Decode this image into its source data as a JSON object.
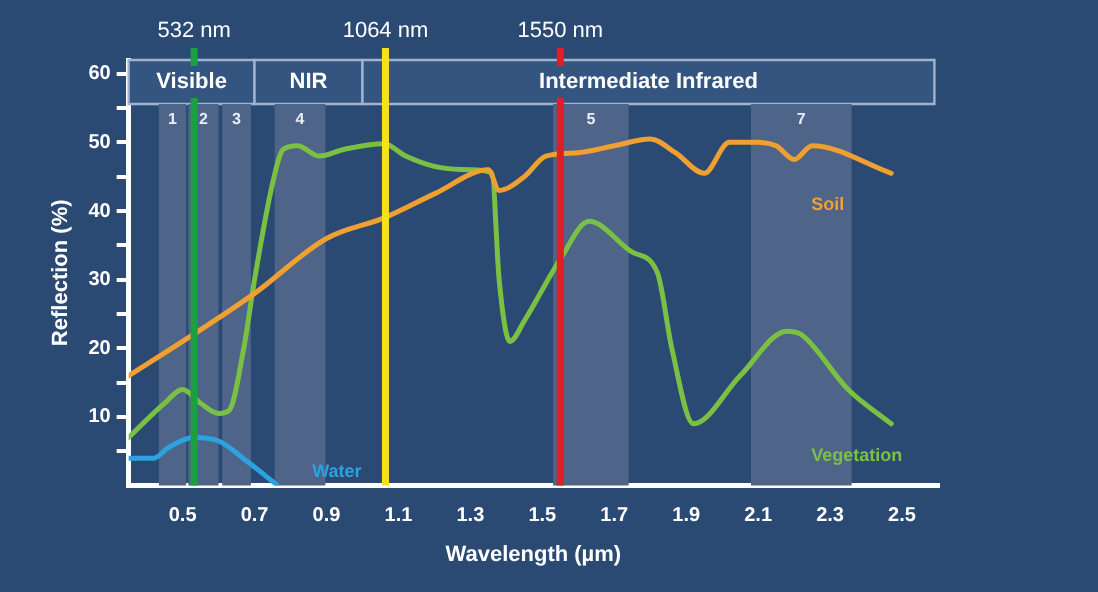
{
  "chart_data": {
    "type": "line",
    "xlabel": "Wavelength (µm)",
    "ylabel": "Reflection (%)",
    "xlim": [
      0.35,
      2.6
    ],
    "ylim": [
      0,
      62
    ],
    "xticks": [
      0.5,
      0.7,
      0.9,
      1.1,
      1.3,
      1.5,
      1.7,
      1.9,
      2.1,
      2.3,
      2.5
    ],
    "yticks": [
      {
        "value": 5,
        "label": null
      },
      10,
      {
        "value": 15,
        "label": null
      },
      20,
      {
        "value": 25,
        "label": null
      },
      30,
      {
        "value": 35,
        "label": null
      },
      40,
      {
        "value": 45,
        "label": null
      },
      50,
      {
        "value": 55,
        "label": null
      },
      60
    ],
    "grid": false,
    "legend": false,
    "marker": "none",
    "line_style": "solid",
    "series": [
      {
        "name": "Soil",
        "color": "#f0a030",
        "x": [
          0.35,
          0.5,
          0.7,
          0.9,
          1.06,
          1.2,
          1.35,
          1.38,
          1.45,
          1.51,
          1.6,
          1.7,
          1.8,
          1.87,
          1.95,
          2.02,
          2.1,
          2.15,
          2.2,
          2.25,
          2.47
        ],
        "values": [
          16,
          21,
          28,
          36,
          39,
          42.5,
          46,
          43,
          45,
          48,
          48.5,
          49.5,
          50.5,
          48.5,
          45.5,
          50,
          50,
          49.5,
          47.5,
          49.5,
          45.5
        ]
      },
      {
        "name": "Vegetation",
        "color": "#7ac143",
        "x": [
          0.35,
          0.45,
          0.5,
          0.55,
          0.6,
          0.63,
          0.67,
          0.7,
          0.75,
          0.78,
          0.82,
          0.88,
          0.95,
          1.06,
          1.12,
          1.2,
          1.3,
          1.36,
          1.38,
          1.41,
          1.45,
          1.55,
          1.63,
          1.75,
          1.82,
          1.86,
          1.92,
          2.05,
          2.18,
          2.22,
          2.35,
          2.47
        ],
        "values": [
          7,
          12,
          14,
          12,
          10.5,
          11,
          20,
          30,
          44,
          49,
          49.5,
          48,
          49,
          49.8,
          48,
          46.5,
          46,
          45.5,
          30,
          21,
          24,
          33,
          38.5,
          34,
          31,
          20,
          9,
          16,
          22.5,
          22,
          14,
          9
        ]
      },
      {
        "name": "Water",
        "color": "#2aa3e0",
        "x": [
          0.35,
          0.42,
          0.46,
          0.53,
          0.6,
          0.68,
          0.76
        ],
        "values": [
          4,
          4,
          5.5,
          7,
          6.5,
          3.5,
          0.2
        ]
      }
    ],
    "ref_lines": [
      {
        "axis": "x",
        "value": 0.532,
        "label": "532 nm",
        "color": "#1aa040"
      },
      {
        "axis": "x",
        "value": 1.064,
        "label": "1064 nm",
        "color": "#f5e31a"
      },
      {
        "axis": "x",
        "value": 1.55,
        "label": "1550 nm",
        "color": "#e02020"
      }
    ],
    "bands": [
      {
        "axis": "x",
        "from": 0.35,
        "to": 0.7,
        "label": "Visible",
        "color": "#33557f"
      },
      {
        "axis": "x",
        "from": 0.7,
        "to": 1.0,
        "label": "NIR",
        "color": "#33557f"
      },
      {
        "axis": "x",
        "from": 1.0,
        "to": 2.59,
        "label": "Intermediate Infrared",
        "color": "#33557f"
      },
      {
        "axis": "x",
        "from": 0.434,
        "to": 0.51,
        "label": "1",
        "color": "#4e6488"
      },
      {
        "axis": "x",
        "from": 0.516,
        "to": 0.6,
        "label": "2",
        "color": "#4e6488"
      },
      {
        "axis": "x",
        "from": 0.61,
        "to": 0.69,
        "label": "3",
        "color": "#4e6488"
      },
      {
        "axis": "x",
        "from": 0.756,
        "to": 0.897,
        "label": "4",
        "color": "#4e6488"
      },
      {
        "axis": "x",
        "from": 1.53,
        "to": 1.74,
        "label": "5",
        "color": "#4e6488"
      },
      {
        "axis": "x",
        "from": 2.08,
        "to": 2.36,
        "label": "7",
        "color": "#4e6488"
      }
    ]
  }
}
